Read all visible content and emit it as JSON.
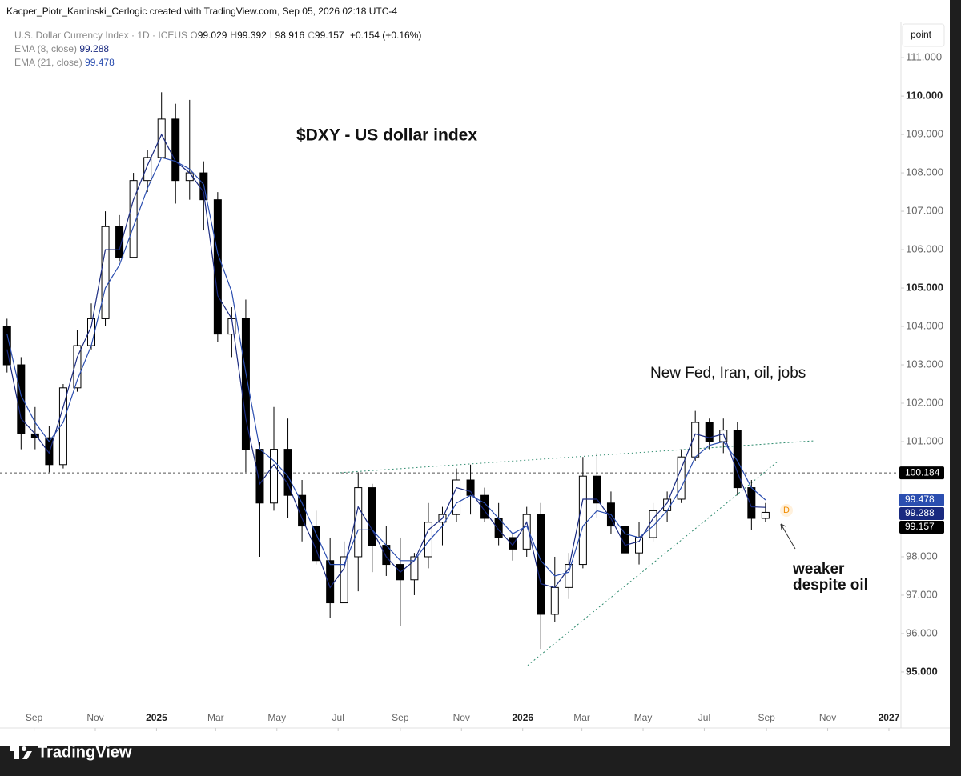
{
  "header": {
    "text": "Kacper_Piotr_Kaminski_Cerlogic created with TradingView.com, Sep 05, 2026 02:18 UTC-4"
  },
  "toolbar": {
    "button": "point"
  },
  "footer": {
    "brand": "TradingView"
  },
  "chart_data": {
    "type": "candlestick",
    "title": "$DXY - US dollar index",
    "annotations": [
      "New Fed, Iran, oil, jobs",
      "weaker",
      "despite oil",
      "D"
    ],
    "legend": {
      "symbol": "U.S. Dollar Currency Index · 1D · ICEUS",
      "ohlc": [
        {
          "label": "O",
          "value": 99.029
        },
        {
          "label": "H",
          "value": 99.392
        },
        {
          "label": "L",
          "value": 98.916
        },
        {
          "label": "C",
          "value": 99.157
        }
      ],
      "change": "+0.154 (+0.16%)"
    },
    "up_color": "#ffffff",
    "down_color": "#000000",
    "x": [
      "2024-08-05",
      "2024-08-19",
      "2024-09-02",
      "2024-09-16",
      "2024-09-30",
      "2024-10-14",
      "2024-10-28",
      "2024-11-11",
      "2024-11-25",
      "2024-12-09",
      "2024-12-23",
      "2025-01-06",
      "2025-01-20",
      "2025-02-03",
      "2025-02-17",
      "2025-03-03",
      "2025-03-17",
      "2025-03-31",
      "2025-04-14",
      "2025-04-28",
      "2025-05-12",
      "2025-05-26",
      "2025-06-09",
      "2025-06-23",
      "2025-07-07",
      "2025-07-21",
      "2025-08-04",
      "2025-08-18",
      "2025-09-01",
      "2025-09-15",
      "2025-09-29",
      "2025-10-13",
      "2025-10-27",
      "2025-11-10",
      "2025-11-24",
      "2025-12-08",
      "2025-12-22",
      "2026-01-05",
      "2026-01-19",
      "2026-02-02",
      "2026-02-16",
      "2026-03-02",
      "2026-03-16",
      "2026-03-30",
      "2026-04-13",
      "2026-04-27",
      "2026-05-11",
      "2026-05-25",
      "2026-06-08",
      "2026-06-22",
      "2026-07-06",
      "2026-07-20",
      "2026-08-03",
      "2026-08-17",
      "2026-08-31"
    ],
    "open": [
      104.0,
      103.0,
      101.2,
      101.1,
      100.4,
      102.4,
      103.5,
      104.2,
      106.6,
      105.8,
      107.8,
      108.4,
      109.4,
      107.8,
      108.0,
      107.3,
      103.8,
      104.2,
      100.8,
      99.4,
      100.8,
      99.6,
      98.8,
      97.9,
      96.8,
      98.0,
      99.8,
      98.3,
      97.8,
      97.4,
      98.0,
      98.9,
      99.1,
      100.0,
      99.6,
      99.0,
      98.5,
      98.2,
      99.1,
      96.5,
      97.2,
      97.8,
      100.1,
      99.4,
      98.8,
      98.1,
      98.5,
      99.2,
      99.5,
      100.6,
      101.5,
      101.0,
      101.3,
      99.8,
      99.0
    ],
    "high": [
      104.2,
      103.2,
      101.9,
      101.4,
      102.5,
      103.9,
      104.6,
      107.0,
      106.9,
      108.0,
      108.6,
      110.1,
      109.8,
      109.9,
      108.3,
      107.5,
      104.5,
      104.7,
      101.0,
      101.9,
      101.6,
      100.0,
      99.2,
      98.5,
      98.4,
      100.2,
      99.9,
      98.8,
      98.5,
      98.1,
      99.4,
      99.3,
      100.3,
      100.4,
      99.8,
      99.4,
      98.6,
      99.3,
      99.4,
      98.0,
      98.1,
      100.6,
      100.7,
      99.7,
      99.6,
      98.9,
      99.4,
      99.7,
      100.8,
      101.8,
      101.6,
      101.6,
      101.5,
      100.0,
      99.4
    ],
    "low": [
      102.8,
      100.8,
      100.8,
      100.2,
      100.3,
      102.3,
      103.4,
      104.0,
      105.7,
      105.9,
      107.5,
      108.4,
      107.2,
      107.3,
      106.5,
      103.6,
      103.2,
      100.2,
      98.0,
      99.2,
      99.0,
      98.4,
      97.8,
      96.4,
      96.8,
      97.1,
      97.6,
      97.5,
      96.2,
      97.0,
      97.7,
      98.3,
      98.9,
      99.1,
      98.9,
      98.3,
      97.9,
      98.0,
      95.6,
      96.3,
      96.9,
      97.7,
      99.0,
      98.6,
      97.9,
      97.8,
      98.4,
      98.9,
      99.4,
      100.5,
      100.8,
      100.7,
      99.6,
      98.7,
      98.9
    ],
    "close": [
      103.0,
      101.2,
      101.1,
      100.4,
      102.4,
      103.5,
      104.2,
      106.6,
      105.8,
      107.8,
      108.4,
      109.4,
      107.8,
      108.0,
      107.3,
      103.8,
      104.2,
      100.8,
      99.4,
      100.8,
      99.6,
      98.8,
      97.9,
      96.8,
      98.0,
      99.8,
      98.3,
      97.8,
      97.4,
      98.0,
      98.9,
      99.1,
      100.0,
      99.6,
      99.0,
      98.5,
      98.2,
      99.1,
      96.5,
      97.2,
      97.8,
      100.1,
      99.4,
      98.8,
      98.1,
      98.5,
      99.2,
      99.5,
      100.6,
      101.5,
      101.0,
      101.3,
      99.8,
      99.0,
      99.157
    ],
    "series": [
      {
        "name": "EMA (8, close)",
        "color": "#1a2a80",
        "values": [
          103.4,
          101.6,
          101.2,
          100.7,
          101.9,
          103.2,
          104.0,
          106.0,
          106.0,
          107.3,
          108.2,
          109.0,
          108.3,
          108.0,
          107.5,
          104.8,
          104.2,
          101.6,
          99.9,
          100.4,
          99.9,
          99.0,
          98.2,
          97.2,
          97.7,
          99.3,
          98.7,
          98.0,
          97.6,
          97.9,
          98.7,
          99.0,
          99.8,
          99.7,
          99.2,
          98.7,
          98.3,
          98.9,
          97.3,
          97.2,
          97.7,
          99.5,
          99.5,
          99.0,
          98.3,
          98.4,
          99.0,
          99.4,
          100.3,
          101.2,
          101.1,
          101.2,
          100.2,
          99.3,
          99.288
        ]
      },
      {
        "name": "EMA (21, close)",
        "color": "#2b4eb0",
        "values": [
          103.8,
          102.2,
          101.5,
          101.0,
          101.5,
          102.6,
          103.5,
          105.0,
          105.6,
          106.6,
          107.6,
          108.4,
          108.3,
          108.1,
          107.7,
          105.9,
          104.9,
          102.8,
          100.8,
          100.5,
          100.1,
          99.4,
          98.6,
          97.8,
          97.8,
          98.7,
          98.7,
          98.3,
          97.9,
          97.9,
          98.4,
          98.8,
          99.4,
          99.6,
          99.4,
          99.0,
          98.6,
          98.8,
          97.9,
          97.5,
          97.6,
          98.8,
          99.2,
          99.1,
          98.6,
          98.5,
          98.8,
          99.2,
          99.8,
          100.6,
          100.9,
          101.0,
          100.5,
          99.8,
          99.478
        ]
      }
    ],
    "level": {
      "value": 100.184
    },
    "trendlines": [
      {
        "color": "#2e8b6e",
        "x": [
          "2025-07-03",
          "2026-10-18"
        ],
        "y": [
          100.19,
          101.02
        ]
      },
      {
        "color": "#2e8b6e",
        "x": [
          "2026-01-06",
          "2026-09-12"
        ],
        "y": [
          95.17,
          100.48
        ]
      }
    ],
    "xlim": [
      "2024-07-29",
      "2027-01-13"
    ],
    "xticks": [
      {
        "value": "2024-09-01",
        "label": "Sep"
      },
      {
        "value": "2024-11-01",
        "label": "Nov"
      },
      {
        "value": "2025-01-01",
        "label": "2025"
      },
      {
        "value": "2025-03-01",
        "label": "Mar"
      },
      {
        "value": "2025-05-01",
        "label": "May"
      },
      {
        "value": "2025-07-01",
        "label": "Jul"
      },
      {
        "value": "2025-09-01",
        "label": "Sep"
      },
      {
        "value": "2025-11-01",
        "label": "Nov"
      },
      {
        "value": "2026-01-01",
        "label": "2026"
      },
      {
        "value": "2026-03-01",
        "label": "Mar"
      },
      {
        "value": "2026-05-01",
        "label": "May"
      },
      {
        "value": "2026-07-01",
        "label": "Jul"
      },
      {
        "value": "2026-09-01",
        "label": "Sep"
      },
      {
        "value": "2026-11-01",
        "label": "Nov"
      },
      {
        "value": "2027-01-01",
        "label": "2027"
      }
    ],
    "ylim": [
      93.54,
      111.94
    ],
    "yticks": [
      {
        "value": 95,
        "label": "95.000"
      },
      {
        "value": 96,
        "label": "96.000"
      },
      {
        "value": 97,
        "label": "97.000"
      },
      {
        "value": 98,
        "label": "98.000"
      },
      {
        "value": 101,
        "label": "101.000"
      },
      {
        "value": 102,
        "label": "102.000"
      },
      {
        "value": 103,
        "label": "103.000"
      },
      {
        "value": 104,
        "label": "104.000"
      },
      {
        "value": 105,
        "label": "105.000"
      },
      {
        "value": 106,
        "label": "106.000"
      },
      {
        "value": 107,
        "label": "107.000"
      },
      {
        "value": 108,
        "label": "108.000"
      },
      {
        "value": 109,
        "label": "109.000"
      },
      {
        "value": 110,
        "label": "110.000"
      },
      {
        "value": 111,
        "label": "111.000"
      }
    ]
  }
}
